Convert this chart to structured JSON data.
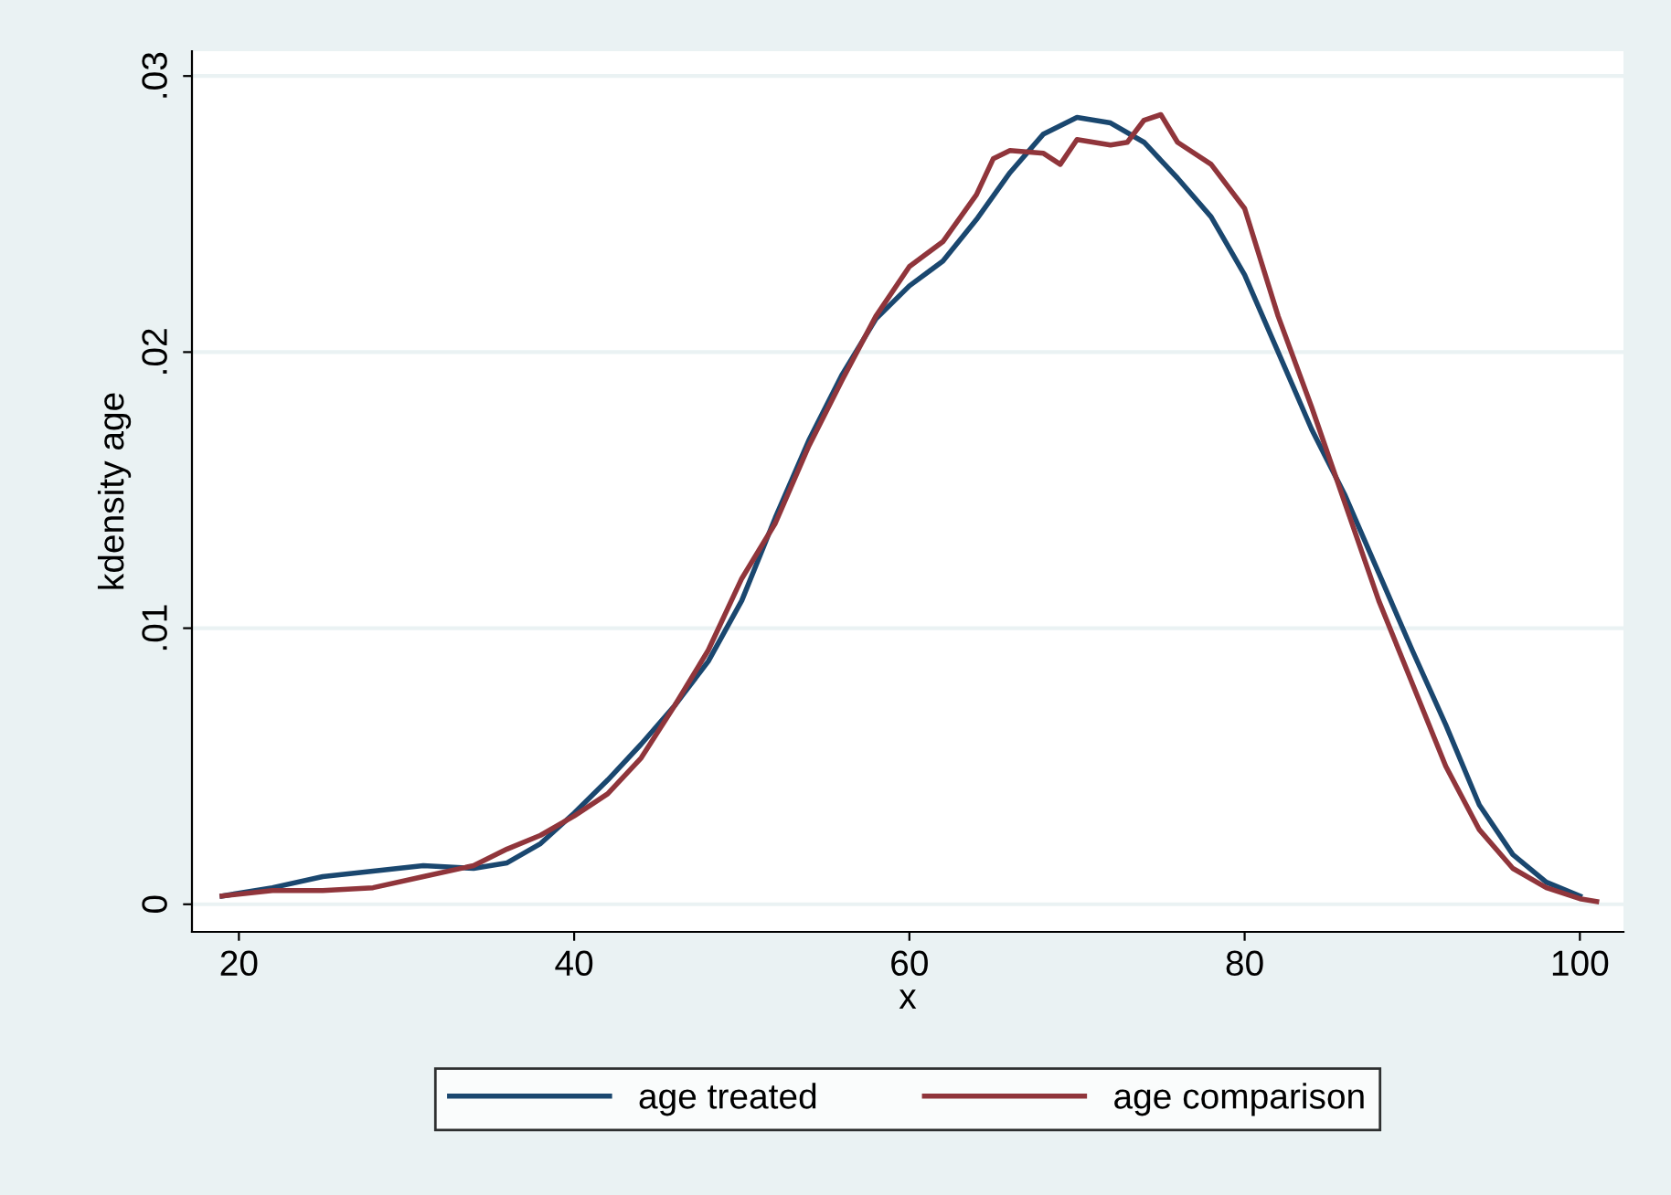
{
  "chart_data": {
    "type": "line",
    "xlabel": "x",
    "ylabel": "kdensity age",
    "xlim": [
      17.2,
      102.6
    ],
    "xticks": [
      20,
      40,
      60,
      80,
      100
    ],
    "ylim": [
      -0.001,
      0.0309
    ],
    "yticks": [
      0,
      {
        "value": 0.01,
        "label": ".01"
      },
      {
        "value": 0.02,
        "label": ".02"
      },
      {
        "value": 0.03,
        "label": ".03"
      }
    ],
    "grid": "y",
    "legend": "bottom",
    "marker": "none",
    "line_style": "solid",
    "series": [
      {
        "name": "age treated",
        "color": "#1a476f",
        "x": [
          19,
          22,
          25,
          28,
          31,
          34,
          36,
          38,
          40,
          42,
          44,
          46,
          48,
          50,
          52,
          54,
          56,
          58,
          60,
          62,
          64,
          66,
          68,
          70,
          72,
          74,
          76,
          78,
          80,
          82,
          84,
          86,
          88,
          90,
          92,
          94,
          96,
          98,
          100
        ],
        "values": [
          0.0003,
          0.0006,
          0.001,
          0.0012,
          0.0014,
          0.0013,
          0.0015,
          0.0022,
          0.0033,
          0.0045,
          0.0058,
          0.0072,
          0.0088,
          0.011,
          0.014,
          0.0168,
          0.0192,
          0.0212,
          0.0224,
          0.0233,
          0.0248,
          0.0265,
          0.0279,
          0.0285,
          0.0283,
          0.0276,
          0.0263,
          0.0249,
          0.0228,
          0.02,
          0.0172,
          0.0148,
          0.012,
          0.0092,
          0.0065,
          0.0036,
          0.0018,
          0.0008,
          0.0003
        ]
      },
      {
        "name": "age comparison",
        "color": "#90353b",
        "x": [
          19,
          22,
          25,
          28,
          31,
          34,
          36,
          38,
          40,
          42,
          44,
          46,
          48,
          50,
          52,
          54,
          56,
          58,
          60,
          62,
          64,
          65,
          66,
          68,
          69,
          70,
          72,
          73,
          74,
          75,
          76,
          78,
          80,
          82,
          84,
          86,
          88,
          90,
          92,
          94,
          96,
          98,
          100,
          101
        ],
        "values": [
          0.0003,
          0.0005,
          0.0005,
          0.0006,
          0.001,
          0.0014,
          0.002,
          0.0025,
          0.0032,
          0.004,
          0.0053,
          0.0072,
          0.0092,
          0.0118,
          0.0138,
          0.0166,
          0.019,
          0.0213,
          0.0231,
          0.024,
          0.0257,
          0.027,
          0.0273,
          0.0272,
          0.0268,
          0.0277,
          0.0275,
          0.0276,
          0.0284,
          0.0286,
          0.0276,
          0.0268,
          0.0252,
          0.0213,
          0.018,
          0.0145,
          0.011,
          0.008,
          0.005,
          0.0027,
          0.0013,
          0.0006,
          0.0002,
          0.0001
        ]
      }
    ]
  }
}
